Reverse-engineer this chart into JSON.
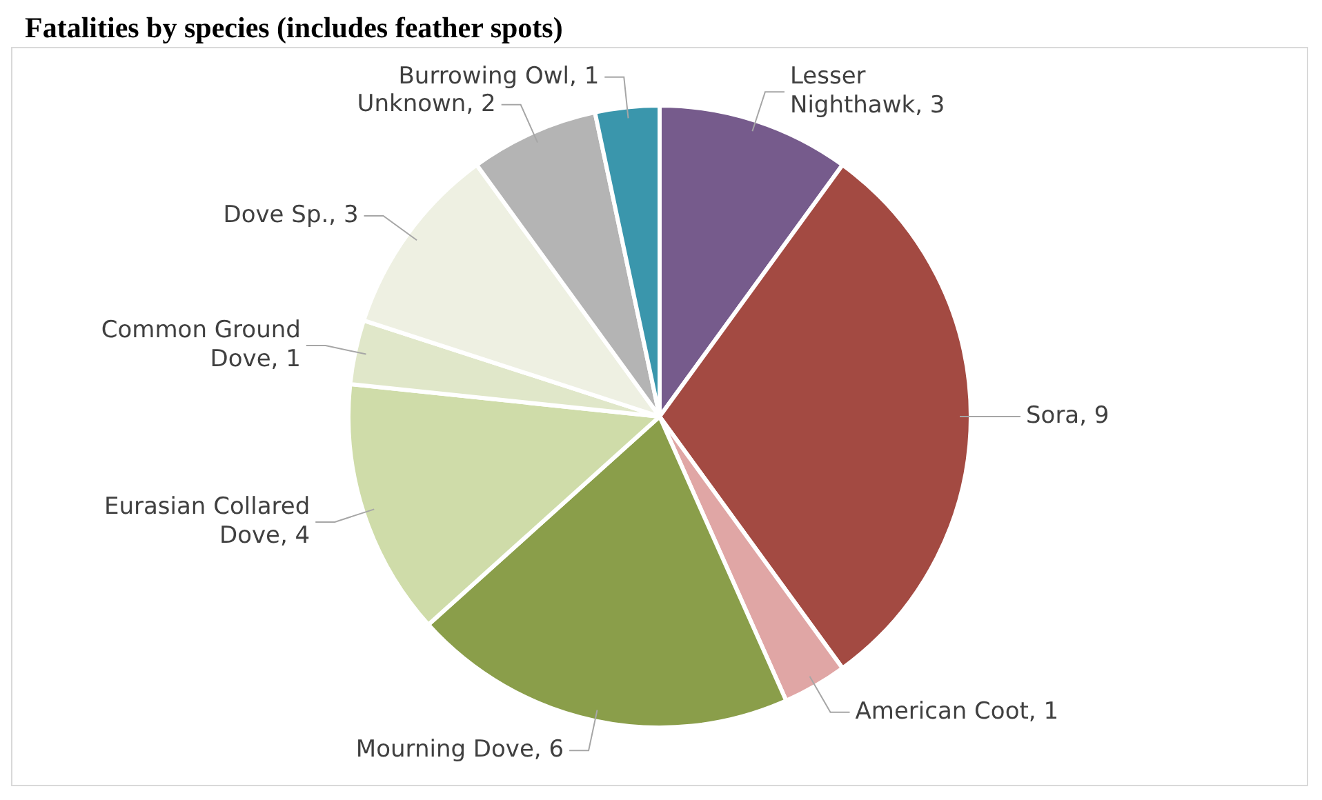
{
  "chart_data": {
    "type": "pie",
    "title": "Fatalities by species (includes feather spots)",
    "categories": [
      "Lesser Nighthawk",
      "Sora",
      "American Coot",
      "Mourning Dove",
      "Eurasian Collared Dove",
      "Common Ground Dove",
      "Dove Sp.",
      "Unknown",
      "Burrowing Owl"
    ],
    "values": [
      3,
      9,
      1,
      6,
      4,
      1,
      3,
      2,
      1
    ],
    "colors": [
      "#765b8c",
      "#a34a42",
      "#e0a6a5",
      "#8a9e4a",
      "#cfdca9",
      "#e0e7c9",
      "#eef0e2",
      "#b4b4b4",
      "#3a96ac"
    ],
    "value_labels": [
      ", 3",
      ", 9",
      ", 1",
      ", 6",
      ", 4",
      ", 1",
      ", 3",
      ", 2",
      ", 1"
    ],
    "legend": false
  }
}
